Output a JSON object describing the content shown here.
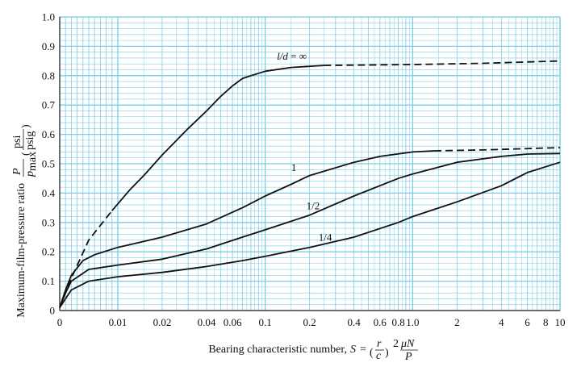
{
  "chart_data": {
    "type": "line",
    "xlabel": "Bearing characteristic number,",
    "xlabel_formula": "S = (r/c)² μN/P",
    "ylabel": "Maximum-film-pressure ratio",
    "ylabel_formula": "P/p_max (psi/psig)",
    "x_scale": "log-with-zero",
    "xlim": [
      0,
      10
    ],
    "ylim": [
      0,
      1.0
    ],
    "grid": true,
    "x_tick_labels": [
      "0",
      "0.01",
      "0.02",
      "0.04",
      "0.06",
      "0.1",
      "0.2",
      "0.4",
      "0.6",
      "0.8",
      "1.0",
      "2",
      "4",
      "6",
      "8",
      "10"
    ],
    "x_tick_values": [
      0,
      0.01,
      0.02,
      0.04,
      0.06,
      0.1,
      0.2,
      0.4,
      0.6,
      0.8,
      1.0,
      2,
      4,
      6,
      8,
      10
    ],
    "y_tick_labels": [
      "0",
      "0.1",
      "0.2",
      "0.3",
      "0.4",
      "0.5",
      "0.6",
      "0.7",
      "0.8",
      "0.9",
      "1.0"
    ],
    "y_tick_values": [
      0,
      0.1,
      0.2,
      0.3,
      0.4,
      0.5,
      0.6,
      0.7,
      0.8,
      0.9,
      1.0
    ],
    "series": [
      {
        "name": "l/d = ∞",
        "points": [
          [
            0,
            0.01
          ],
          [
            0.001,
            0.05
          ],
          [
            0.002,
            0.11
          ],
          [
            0.005,
            0.24
          ],
          [
            0.008,
            0.32
          ]
        ],
        "dashed_points": [],
        "solid_points": [
          [
            0.009,
            0.34
          ],
          [
            0.012,
            0.41
          ],
          [
            0.015,
            0.46
          ],
          [
            0.02,
            0.53
          ],
          [
            0.03,
            0.62
          ],
          [
            0.04,
            0.68
          ],
          [
            0.05,
            0.73
          ],
          [
            0.06,
            0.765
          ],
          [
            0.07,
            0.79
          ],
          [
            0.08,
            0.8
          ],
          [
            0.1,
            0.815
          ],
          [
            0.15,
            0.828
          ],
          [
            0.25,
            0.835
          ]
        ],
        "tail_dashed": [
          [
            0.25,
            0.835
          ],
          [
            1.0,
            0.838
          ],
          [
            3,
            0.842
          ],
          [
            10,
            0.85
          ]
        ],
        "head_dashed": [
          [
            0,
            0.01
          ],
          [
            0.002,
            0.11
          ],
          [
            0.005,
            0.24
          ],
          [
            0.009,
            0.34
          ]
        ]
      },
      {
        "name": "1",
        "solid_points": [
          [
            0,
            0.01
          ],
          [
            0.001,
            0.07
          ],
          [
            0.002,
            0.12
          ],
          [
            0.004,
            0.17
          ],
          [
            0.006,
            0.19
          ],
          [
            0.01,
            0.215
          ],
          [
            0.02,
            0.25
          ],
          [
            0.04,
            0.295
          ],
          [
            0.07,
            0.35
          ],
          [
            0.1,
            0.39
          ],
          [
            0.15,
            0.43
          ],
          [
            0.2,
            0.46
          ],
          [
            0.4,
            0.505
          ],
          [
            0.6,
            0.525
          ],
          [
            1.0,
            0.54
          ],
          [
            1.4,
            0.544
          ]
        ],
        "tail_dashed": [
          [
            1.4,
            0.544
          ],
          [
            3,
            0.547
          ],
          [
            10,
            0.555
          ]
        ]
      },
      {
        "name": "1/2",
        "solid_points": [
          [
            0,
            0.01
          ],
          [
            0.001,
            0.06
          ],
          [
            0.002,
            0.1
          ],
          [
            0.005,
            0.14
          ],
          [
            0.01,
            0.155
          ],
          [
            0.02,
            0.175
          ],
          [
            0.04,
            0.21
          ],
          [
            0.07,
            0.25
          ],
          [
            0.1,
            0.275
          ],
          [
            0.2,
            0.325
          ],
          [
            0.4,
            0.39
          ],
          [
            0.8,
            0.45
          ],
          [
            1.0,
            0.465
          ],
          [
            2,
            0.505
          ],
          [
            4,
            0.525
          ],
          [
            6,
            0.533
          ],
          [
            10,
            0.535
          ]
        ]
      },
      {
        "name": "1/4",
        "solid_points": [
          [
            0,
            0.01
          ],
          [
            0.001,
            0.04
          ],
          [
            0.002,
            0.07
          ],
          [
            0.005,
            0.1
          ],
          [
            0.01,
            0.115
          ],
          [
            0.02,
            0.13
          ],
          [
            0.04,
            0.15
          ],
          [
            0.07,
            0.17
          ],
          [
            0.1,
            0.185
          ],
          [
            0.2,
            0.215
          ],
          [
            0.4,
            0.25
          ],
          [
            0.8,
            0.3
          ],
          [
            1.0,
            0.32
          ],
          [
            2,
            0.37
          ],
          [
            4,
            0.425
          ],
          [
            6,
            0.47
          ],
          [
            10,
            0.505
          ]
        ]
      }
    ],
    "curve_labels": [
      {
        "text": "l/d = ∞",
        "x": 0.12,
        "y": 0.855
      },
      {
        "text": "1",
        "x": 0.15,
        "y": 0.475
      },
      {
        "text": "1/2",
        "x": 0.19,
        "y": 0.345
      },
      {
        "text": "1/4",
        "x": 0.23,
        "y": 0.237
      }
    ]
  }
}
